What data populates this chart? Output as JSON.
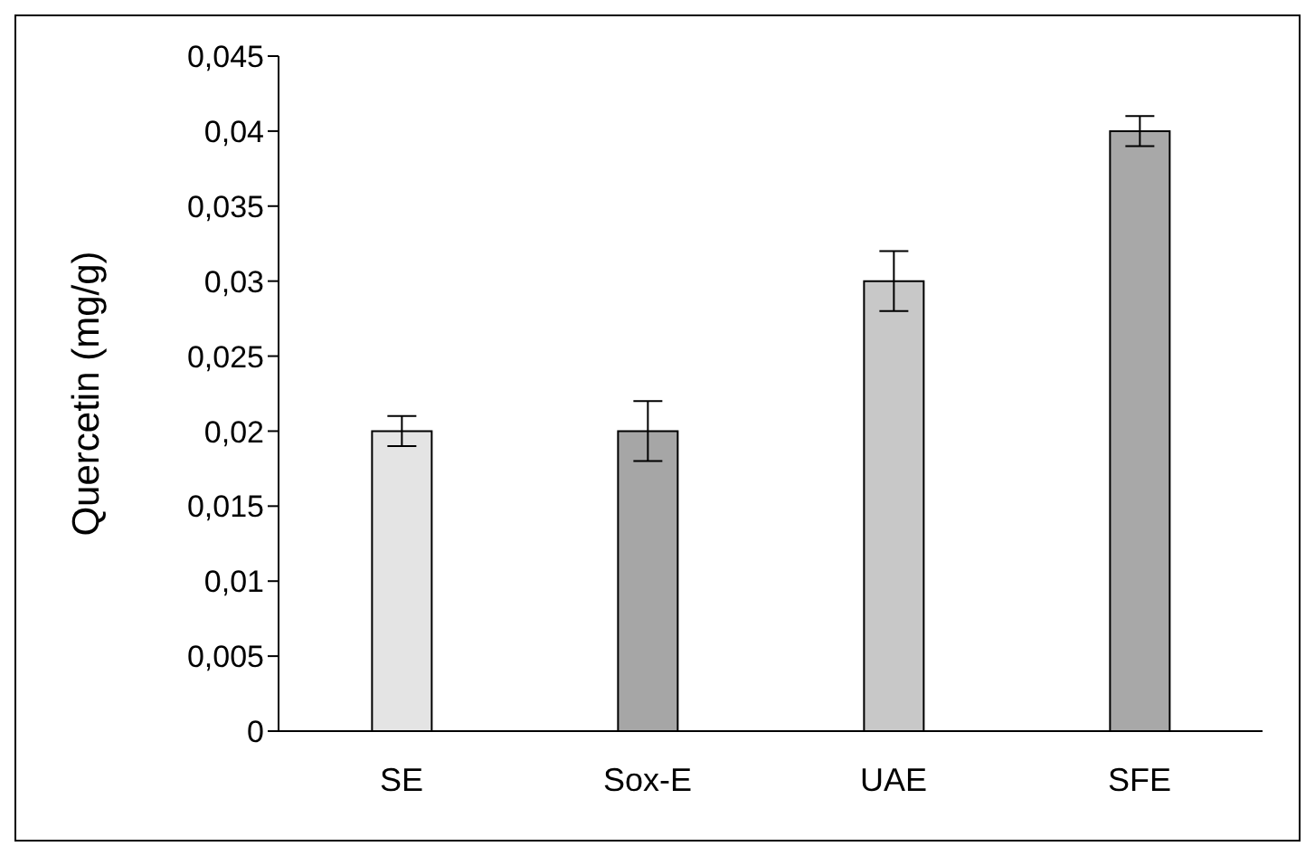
{
  "chart_data": {
    "type": "bar",
    "ylabel": "Quercetin (mg/g)",
    "categories": [
      "SE",
      "Sox-E",
      "UAE",
      "SFE"
    ],
    "values": [
      0.02,
      0.02,
      0.03,
      0.04
    ],
    "errors": [
      0.001,
      0.002,
      0.002,
      0.001
    ],
    "colors": [
      "#e4e4e4",
      "#a6a6a6",
      "#c8c8c8",
      "#a8a8a8"
    ],
    "ylim": [
      0,
      0.045
    ],
    "yticks": [
      0,
      {
        "value": 0.005,
        "label": "0,005"
      },
      {
        "value": 0.01,
        "label": "0,01"
      },
      {
        "value": 0.015,
        "label": "0,015"
      },
      {
        "value": 0.02,
        "label": "0,02"
      },
      {
        "value": 0.025,
        "label": "0,025"
      },
      {
        "value": 0.03,
        "label": "0,03"
      },
      {
        "value": 0.035,
        "label": "0,035"
      },
      {
        "value": 0.04,
        "label": "0,04"
      },
      {
        "value": 0.045,
        "label": "0,045"
      }
    ],
    "grid": false,
    "legend": false
  }
}
